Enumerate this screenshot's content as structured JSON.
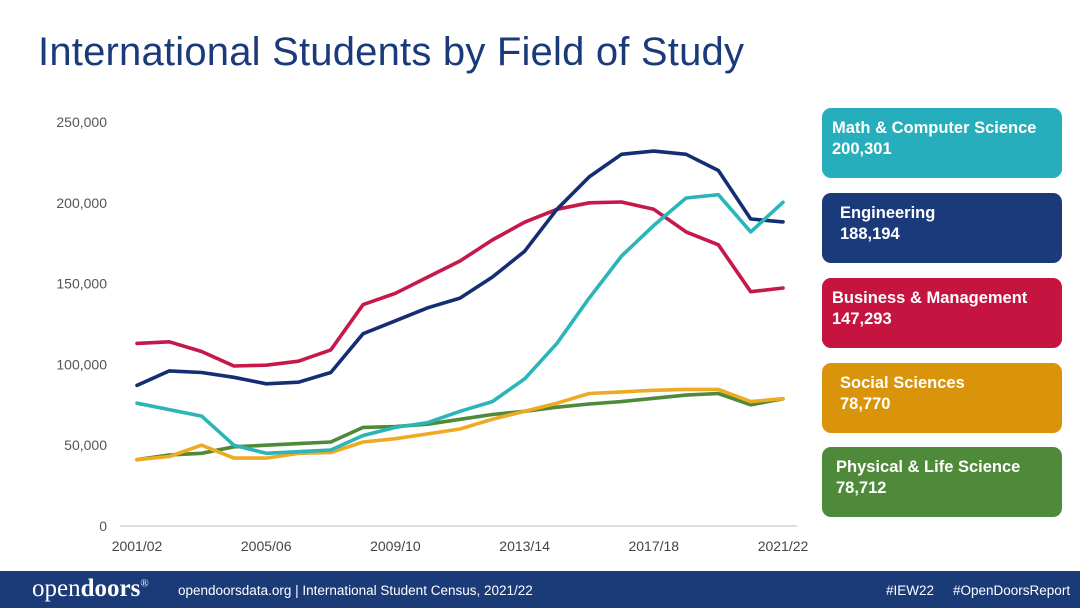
{
  "title": "International Students by Field of Study",
  "chart_data": {
    "type": "line",
    "title": "International Students by Field of Study",
    "xlabel": "",
    "ylabel": "",
    "ylim": [
      0,
      250000
    ],
    "yticks": [
      0,
      50000,
      100000,
      150000,
      200000,
      250000
    ],
    "ytick_labels": [
      "0",
      "50,000",
      "100,000",
      "150,000",
      "200,000",
      "250,000"
    ],
    "xtick_labels": [
      "2001/02",
      "2005/06",
      "2009/10",
      "2013/14",
      "2017/18",
      "2021/22"
    ],
    "x": [
      "2001/02",
      "2002/03",
      "2003/04",
      "2004/05",
      "2005/06",
      "2006/07",
      "2007/08",
      "2008/09",
      "2009/10",
      "2010/11",
      "2011/12",
      "2012/13",
      "2013/14",
      "2014/15",
      "2015/16",
      "2016/17",
      "2017/18",
      "2018/19",
      "2019/20",
      "2020/21",
      "2021/22"
    ],
    "series": [
      {
        "name": "Math & Computer Science",
        "color": "#2ab5b8",
        "values": [
          76000,
          72000,
          68000,
          50000,
          45000,
          46000,
          47000,
          56000,
          61000,
          64000,
          71000,
          77000,
          91000,
          113000,
          141000,
          167000,
          186000,
          203000,
          205000,
          182000,
          200301
        ]
      },
      {
        "name": "Engineering",
        "color": "#132e72",
        "values": [
          87000,
          96000,
          95000,
          92000,
          88000,
          89000,
          95000,
          119000,
          127000,
          135000,
          141000,
          154000,
          170000,
          196000,
          216000,
          230000,
          232000,
          230000,
          220000,
          190000,
          188194
        ]
      },
      {
        "name": "Business & Management",
        "color": "#c6184a",
        "values": [
          113000,
          114000,
          108000,
          99000,
          99500,
          102000,
          109000,
          137000,
          144000,
          154000,
          164000,
          177000,
          188000,
          196000,
          200000,
          200500,
          196000,
          182000,
          174000,
          145000,
          147293
        ]
      },
      {
        "name": "Social Sciences",
        "color": "#eeaa22",
        "values": [
          41000,
          43000,
          50000,
          42000,
          42000,
          45000,
          45500,
          52000,
          54000,
          57000,
          60000,
          66000,
          71000,
          76000,
          82000,
          83000,
          84000,
          84500,
          84500,
          77000,
          78770
        ]
      },
      {
        "name": "Physical & Life Science",
        "color": "#4f8a3a",
        "values": [
          41000,
          44000,
          45000,
          49000,
          50000,
          51000,
          52000,
          61000,
          61500,
          63000,
          66000,
          69000,
          71000,
          73500,
          75500,
          77000,
          79000,
          81000,
          82000,
          75000,
          78712
        ]
      }
    ]
  },
  "legend": [
    {
      "label": "Math & Computer Science",
      "value": "200,301",
      "color": "#27aebd"
    },
    {
      "label": "Engineering",
      "value": "188,194",
      "color": "#1b3a7a"
    },
    {
      "label": "Business & Management",
      "value": "147,293",
      "color": "#c5143f"
    },
    {
      "label": "Social Sciences",
      "value": "78,770",
      "color": "#d9940b"
    },
    {
      "label": "Physical & Life Science",
      "value": "78,712",
      "color": "#4e8a3a"
    }
  ],
  "footer": {
    "logo_regular": "open",
    "logo_bold": "doors",
    "logo_mark": "®",
    "source_text": "opendoorsdata.org  |  International Student Census, 2021/22",
    "hashtag_1": "#IEW22",
    "hashtag_2": "#OpenDoorsReport",
    "background": "#1b3a78"
  }
}
